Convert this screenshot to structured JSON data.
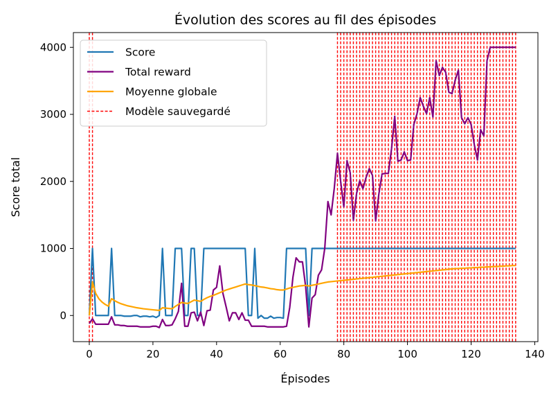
{
  "chart_data": {
    "type": "line",
    "title": "Évolution des scores au fil des épisodes",
    "xlabel": "Épisodes",
    "ylabel": "Score total",
    "xlim": [
      -5,
      141
    ],
    "ylim": [
      -390,
      4220
    ],
    "xticks": [
      0,
      20,
      40,
      60,
      80,
      100,
      120,
      140
    ],
    "yticks": [
      0,
      1000,
      2000,
      3000,
      4000
    ],
    "grid": false,
    "legend_position": "upper-left",
    "series": [
      {
        "name": "Score",
        "color": "#1f77b4",
        "x": [
          0,
          1,
          2,
          3,
          4,
          5,
          6,
          7,
          8,
          9,
          10,
          11,
          12,
          13,
          14,
          15,
          16,
          17,
          18,
          19,
          20,
          21,
          22,
          23,
          24,
          25,
          26,
          27,
          28,
          29,
          30,
          31,
          32,
          33,
          34,
          35,
          36,
          37,
          38,
          39,
          40,
          41,
          42,
          43,
          44,
          45,
          46,
          47,
          48,
          49,
          50,
          51,
          52,
          53,
          54,
          55,
          56,
          57,
          58,
          59,
          60,
          61,
          62,
          63,
          64,
          65,
          66,
          67,
          68,
          69,
          70,
          71,
          72,
          73,
          74,
          75,
          76,
          77,
          78,
          79,
          80,
          81,
          82,
          83,
          84,
          85,
          86,
          87,
          88,
          89,
          90,
          91,
          92,
          93,
          94,
          95,
          96,
          97,
          98,
          99,
          100,
          101,
          102,
          103,
          104,
          105,
          106,
          107,
          108,
          109,
          110,
          111,
          112,
          113,
          114,
          115,
          116,
          117,
          118,
          119,
          120,
          121,
          122,
          123,
          124,
          125,
          126,
          127,
          128,
          129,
          130,
          131,
          132,
          133,
          134
        ],
        "y": [
          0,
          1000,
          0,
          0,
          0,
          0,
          0,
          1000,
          0,
          0,
          0,
          -10,
          -10,
          -10,
          0,
          0,
          -20,
          -10,
          -10,
          -20,
          -10,
          -30,
          0,
          1000,
          0,
          0,
          0,
          1000,
          1000,
          1000,
          0,
          0,
          1000,
          1000,
          0,
          0,
          1000,
          1000,
          1000,
          1000,
          1000,
          1000,
          1000,
          1000,
          1000,
          1000,
          1000,
          1000,
          1000,
          1000,
          0,
          0,
          1000,
          -40,
          0,
          -40,
          -40,
          -10,
          -40,
          -30,
          -30,
          -40,
          1000,
          1000,
          1000,
          1000,
          1000,
          1000,
          1000,
          0,
          1000,
          1000,
          1000,
          1000,
          1000,
          1000,
          1000,
          1000,
          1000,
          1000,
          1000,
          1000,
          1000,
          1000,
          1000,
          1000,
          1000,
          1000,
          1000,
          1000,
          1000,
          1000,
          1000,
          1000,
          1000,
          1000,
          1000,
          1000,
          1000,
          1000,
          1000,
          1000,
          1000,
          1000,
          1000,
          1000,
          1000,
          1000,
          1000,
          1000,
          1000,
          1000,
          1000,
          1000,
          1000,
          1000,
          1000,
          1000,
          1000,
          1000,
          1000,
          1000,
          1000,
          1000,
          1000,
          1000,
          1000,
          1000,
          1000,
          1000,
          1000,
          1000,
          1000,
          1000,
          1000
        ]
      },
      {
        "name": "Total reward",
        "color": "#800080",
        "x": [
          0,
          1,
          2,
          3,
          4,
          5,
          6,
          7,
          8,
          9,
          10,
          11,
          12,
          13,
          14,
          15,
          16,
          17,
          18,
          19,
          20,
          21,
          22,
          23,
          24,
          25,
          26,
          27,
          28,
          29,
          30,
          31,
          32,
          33,
          34,
          35,
          36,
          37,
          38,
          39,
          40,
          41,
          42,
          43,
          44,
          45,
          46,
          47,
          48,
          49,
          50,
          51,
          52,
          53,
          54,
          55,
          56,
          57,
          58,
          59,
          60,
          61,
          62,
          63,
          64,
          65,
          66,
          67,
          68,
          69,
          70,
          71,
          72,
          73,
          74,
          75,
          76,
          77,
          78,
          79,
          80,
          81,
          82,
          83,
          84,
          85,
          86,
          87,
          88,
          89,
          90,
          91,
          92,
          93,
          94,
          95,
          96,
          97,
          98,
          99,
          100,
          101,
          102,
          103,
          104,
          105,
          106,
          107,
          108,
          109,
          110,
          111,
          112,
          113,
          114,
          115,
          116,
          117,
          118,
          119,
          120,
          121,
          122,
          123,
          124,
          125,
          126,
          127,
          128,
          129,
          130,
          131,
          132,
          133,
          134
        ],
        "y": [
          -120,
          -50,
          -130,
          -130,
          -130,
          -130,
          -130,
          -20,
          -140,
          -140,
          -150,
          -150,
          -160,
          -160,
          -160,
          -160,
          -170,
          -170,
          -170,
          -170,
          -160,
          -160,
          -180,
          -60,
          -150,
          -150,
          -140,
          -50,
          60,
          480,
          -160,
          -160,
          40,
          50,
          -80,
          50,
          -150,
          70,
          80,
          380,
          420,
          740,
          330,
          130,
          -80,
          40,
          40,
          -60,
          40,
          -70,
          -70,
          -160,
          -160,
          -160,
          -160,
          -160,
          -170,
          -170,
          -170,
          -170,
          -170,
          -170,
          -160,
          120,
          570,
          860,
          800,
          800,
          430,
          -170,
          260,
          310,
          600,
          680,
          1000,
          1700,
          1500,
          1900,
          2420,
          2000,
          1620,
          2310,
          2130,
          1420,
          1820,
          2010,
          1890,
          2060,
          2190,
          2090,
          1410,
          1810,
          2110,
          2120,
          2120,
          2490,
          2970,
          2300,
          2320,
          2440,
          2310,
          2320,
          2850,
          3010,
          3250,
          3120,
          3010,
          3250,
          2960,
          3800,
          3580,
          3700,
          3630,
          3330,
          3310,
          3510,
          3660,
          2950,
          2860,
          2950,
          2850,
          2550,
          2320,
          2770,
          2680,
          3800,
          4000,
          4000,
          4000,
          4000,
          4000,
          4000,
          4000,
          4000,
          4000
        ],
        "yStrategy": "listed"
      },
      {
        "name": "Moyenne globale",
        "color": "#ffa500",
        "x": [
          0,
          1,
          2,
          3,
          4,
          5,
          6,
          7,
          8,
          9,
          10,
          11,
          12,
          13,
          14,
          15,
          16,
          17,
          18,
          19,
          20,
          21,
          22,
          23,
          24,
          25,
          26,
          27,
          28,
          29,
          30,
          31,
          32,
          33,
          34,
          35,
          36,
          37,
          38,
          39,
          40,
          41,
          42,
          43,
          44,
          45,
          46,
          47,
          48,
          49,
          50,
          51,
          52,
          53,
          54,
          55,
          56,
          57,
          58,
          59,
          60,
          61,
          62,
          63,
          64,
          65,
          66,
          67,
          68,
          69,
          70,
          71,
          72,
          73,
          74,
          75,
          76,
          77,
          78,
          79,
          80,
          81,
          82,
          83,
          84,
          85,
          86,
          87,
          88,
          89,
          90,
          91,
          92,
          93,
          94,
          95,
          96,
          97,
          98,
          99,
          100,
          101,
          102,
          103,
          104,
          105,
          106,
          107,
          108,
          109,
          110,
          111,
          112,
          113,
          114,
          115,
          116,
          117,
          118,
          119,
          120,
          121,
          122,
          123,
          124,
          125,
          126,
          127,
          128,
          129,
          130,
          131,
          132,
          133,
          134
        ],
        "y": [
          0,
          500,
          330,
          250,
          200,
          165,
          140,
          250,
          220,
          195,
          175,
          160,
          145,
          135,
          125,
          115,
          108,
          100,
          95,
          90,
          85,
          80,
          75,
          115,
          110,
          105,
          100,
          135,
          165,
          195,
          185,
          180,
          205,
          230,
          220,
          210,
          240,
          265,
          285,
          300,
          320,
          340,
          360,
          380,
          395,
          410,
          425,
          440,
          455,
          470,
          460,
          455,
          445,
          435,
          425,
          420,
          410,
          400,
          395,
          385,
          380,
          380,
          395,
          410,
          420,
          430,
          440,
          445,
          450,
          440,
          450,
          460,
          470,
          480,
          490,
          500,
          505,
          510,
          515,
          520,
          525,
          530,
          535,
          540,
          545,
          550,
          555,
          560,
          565,
          570,
          575,
          580,
          585,
          590,
          595,
          600,
          605,
          610,
          615,
          620,
          625,
          630,
          635,
          640,
          645,
          650,
          655,
          660,
          665,
          670,
          675,
          680,
          685,
          690,
          695,
          700,
          700,
          705,
          705,
          710,
          710,
          715,
          715,
          720,
          720,
          725,
          725,
          730,
          730,
          735,
          735,
          740,
          740,
          745,
          745
        ]
      }
    ],
    "saved_model_series": {
      "name": "Modèle sauvegardé",
      "color": "#ff0000",
      "style": "dashed",
      "x": [
        0,
        1,
        78,
        79,
        80,
        81,
        82,
        83,
        84,
        85,
        86,
        87,
        88,
        89,
        90,
        91,
        92,
        93,
        94,
        95,
        96,
        97,
        98,
        99,
        100,
        101,
        102,
        103,
        104,
        105,
        106,
        107,
        108,
        109,
        110,
        111,
        112,
        113,
        114,
        115,
        116,
        117,
        118,
        119,
        120,
        121,
        122,
        123,
        124,
        125,
        126,
        127,
        128,
        129,
        130,
        131,
        132,
        133,
        134
      ]
    }
  }
}
